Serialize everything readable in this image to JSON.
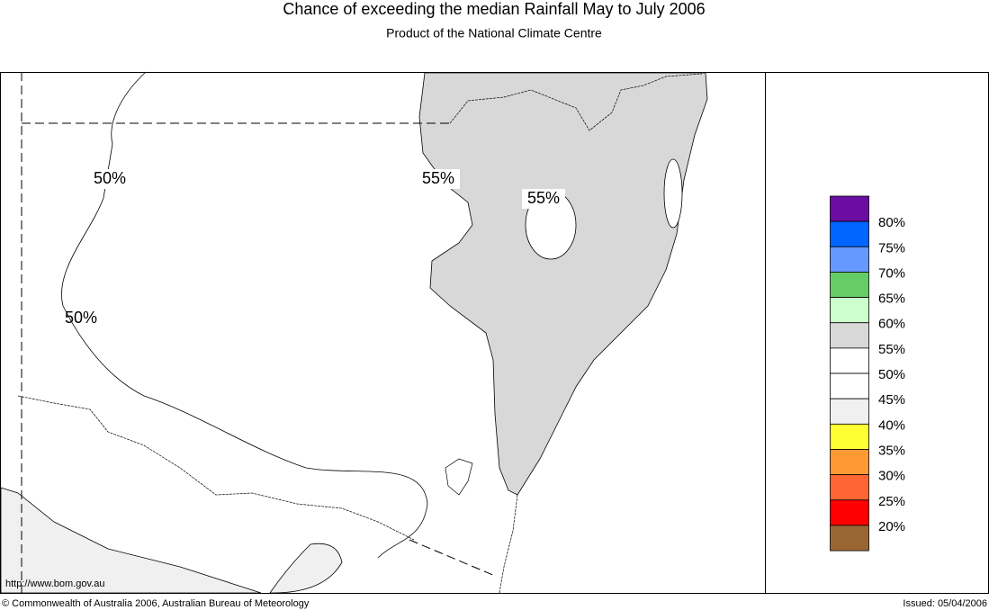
{
  "header": {
    "title": "Chance of exceeding the median Rainfall May to July 2006",
    "subtitle": "Product of the National Climate Centre"
  },
  "map": {
    "contour_labels": [
      "50%",
      "55%",
      "55%",
      "50%"
    ]
  },
  "legend": {
    "colors": [
      "#6a0da0",
      "#0066ff",
      "#6699ff",
      "#66cc66",
      "#ccffcc",
      "#d8d8d8",
      "#ffffff",
      "#ffffff",
      "#f0f0f0",
      "#ffff33",
      "#ff9933",
      "#ff6633",
      "#ff0000",
      "#996633"
    ],
    "labels": [
      "80%",
      "75%",
      "70%",
      "65%",
      "60%",
      "55%",
      "50%",
      "45%",
      "40%",
      "35%",
      "30%",
      "25%",
      "20%"
    ]
  },
  "footer": {
    "url": "http://www.bom.gov.au",
    "copyright": "© Commonwealth of Australia 2006, Australian Bureau of Meteorology",
    "issued": "Issued: 05/04/2006"
  }
}
